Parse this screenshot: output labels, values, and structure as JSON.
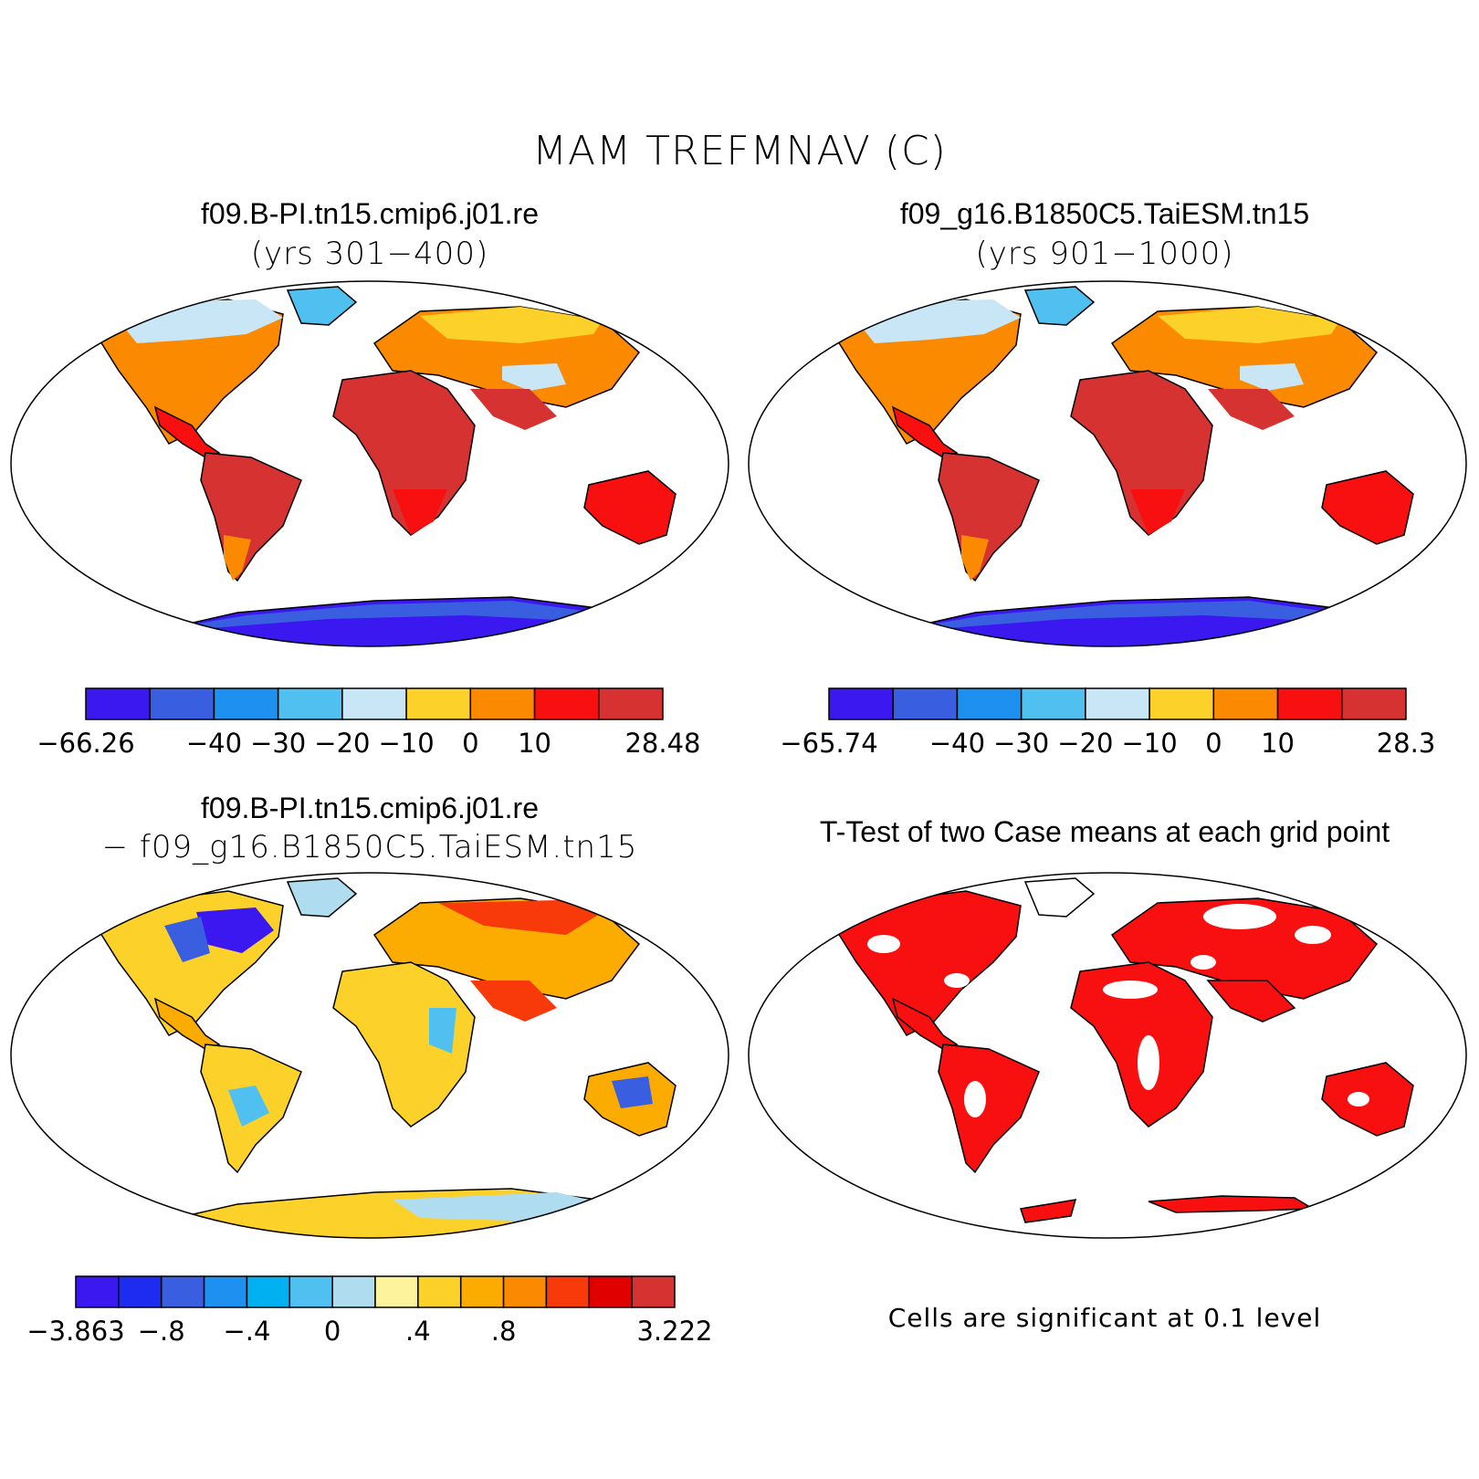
{
  "title": "MAM TREFMNAV (C)",
  "panels": [
    {
      "title": "f09.B-PI.tn15.cmip6.j01.re",
      "subtitle": "(yrs 301−400)",
      "colorbar": {
        "colors": [
          "#3b17f0",
          "#3a5ee0",
          "#1e90f0",
          "#4fc0f0",
          "#c8e6f6",
          "#fcd12a",
          "#fc8a00",
          "#f80f0f",
          "#d63232"
        ],
        "labels": [
          "−66.26",
          "−40",
          "−30",
          "−20",
          "−10",
          "0",
          "10",
          "28.48"
        ],
        "label_edges": [
          0,
          2,
          3,
          4,
          5,
          6,
          7,
          9
        ]
      }
    },
    {
      "title": "f09_g16.B1850C5.TaiESM.tn15",
      "subtitle": "(yrs 901−1000)",
      "colorbar": {
        "colors": [
          "#3b17f0",
          "#3a5ee0",
          "#1e90f0",
          "#4fc0f0",
          "#c8e6f6",
          "#fcd12a",
          "#fc8a00",
          "#f80f0f",
          "#d63232"
        ],
        "labels": [
          "−65.74",
          "−40",
          "−30",
          "−20",
          "−10",
          "0",
          "10",
          "28.3"
        ],
        "label_edges": [
          0,
          2,
          3,
          4,
          5,
          6,
          7,
          9
        ]
      }
    },
    {
      "title": "f09.B-PI.tn15.cmip6.j01.re",
      "subtitle": "− f09_g16.B1850C5.TaiESM.tn15",
      "colorbar": {
        "colors": [
          "#3b17f0",
          "#1e2cf0",
          "#3a5ee0",
          "#1e90f0",
          "#00b0f0",
          "#4fc0f0",
          "#b0dcf0",
          "#fcf39c",
          "#fcd12a",
          "#fcab00",
          "#fc8a00",
          "#f83a0a",
          "#e00000",
          "#d63232"
        ],
        "labels": [
          "−3.863",
          "−.8",
          "−.4",
          "0",
          ".4",
          ".8",
          "3.222"
        ],
        "label_edges": [
          0,
          2,
          4,
          6,
          8,
          10,
          14
        ]
      }
    },
    {
      "title": "T-Test of two Case means at each grid point",
      "note": "Cells are significant at 0.1 level"
    }
  ],
  "colors": {
    "significant": "#f80f0f",
    "background": "#ffffff"
  }
}
